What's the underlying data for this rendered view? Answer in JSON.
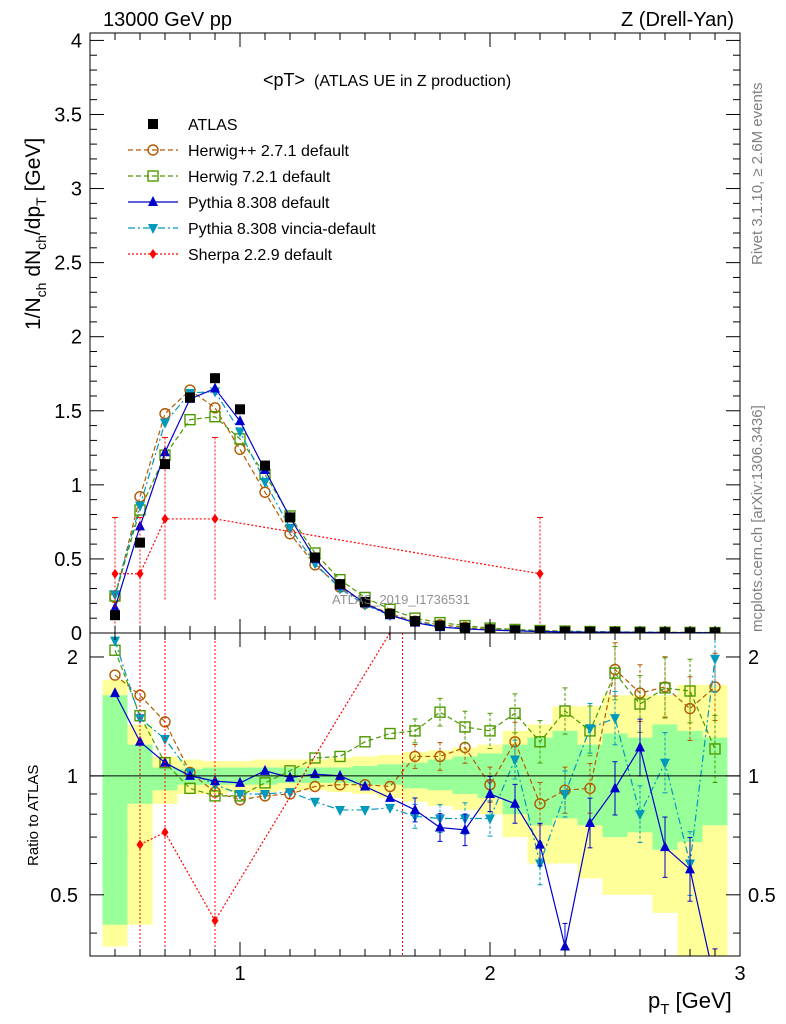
{
  "header": {
    "left": "13000 GeV pp",
    "right": "Z (Drell-Yan)",
    "plot_title": "<pT>",
    "plot_subtitle": "(ATLAS UE in Z production)",
    "side_top": "Rivet 3.1.10, ≥ 2.6M events",
    "side_bottom": "mcplots.cern.ch [arXiv:1306.3436]",
    "watermark": "ATLAS_2019_I1736531"
  },
  "colors": {
    "atlas": "#000000",
    "herwigpp": "#b35900",
    "herwig7": "#4d9900",
    "pythia": "#0000cc",
    "vincia": "#0099bb",
    "sherpa": "#ff0000",
    "band_outer": "#ffff99",
    "band_inner": "#99ff99"
  },
  "chart_data": [
    {
      "type": "line",
      "panel": "main",
      "xlabel": "p_T [GeV]",
      "ylabel": "1/N_ch dN_ch/dp_T [GeV]",
      "xlim": [
        0.4,
        3.0
      ],
      "ylim": [
        0,
        4.05
      ],
      "y_ticks": [
        "0",
        "0.5",
        "1",
        "1.5",
        "2",
        "2.5",
        "3",
        "3.5",
        "4"
      ],
      "legend": [
        {
          "key": "atlas",
          "label": "ATLAS"
        },
        {
          "key": "herwigpp",
          "label": "Herwig++ 2.7.1 default"
        },
        {
          "key": "herwig7",
          "label": "Herwig 7.2.1 default"
        },
        {
          "key": "pythia",
          "label": "Pythia 8.308 default"
        },
        {
          "key": "vincia",
          "label": "Pythia 8.308 vincia-default"
        },
        {
          "key": "sherpa",
          "label": "Sherpa 2.2.9 default"
        }
      ],
      "series": [
        {
          "key": "atlas",
          "name": "ATLAS",
          "x": [
            0.5,
            0.6,
            0.7,
            0.8,
            0.9,
            1.0,
            1.1,
            1.2,
            1.3,
            1.4,
            1.5,
            1.6,
            1.7,
            1.8,
            1.9,
            2.0,
            2.1,
            2.2,
            2.3,
            2.4,
            2.5,
            2.6,
            2.7,
            2.8,
            2.9
          ],
          "y": [
            0.12,
            0.61,
            1.14,
            1.59,
            1.72,
            1.51,
            1.13,
            0.78,
            0.51,
            0.33,
            0.21,
            0.13,
            0.08,
            0.05,
            0.035,
            0.025,
            0.018,
            0.013,
            0.01,
            0.008,
            0.006,
            0.005,
            0.004,
            0.003,
            0.003
          ]
        },
        {
          "key": "herwigpp",
          "name": "Herwig++ 2.7.1 default",
          "x": [
            0.5,
            0.6,
            0.7,
            0.8,
            0.9,
            1.0,
            1.1,
            1.2,
            1.3,
            1.4,
            1.5,
            1.6,
            1.7,
            1.8,
            1.9,
            2.0,
            2.1,
            2.2,
            2.3,
            2.4,
            2.5,
            2.6,
            2.7,
            2.8,
            2.9
          ],
          "y": [
            0.24,
            0.92,
            1.48,
            1.64,
            1.52,
            1.24,
            0.95,
            0.67,
            0.46,
            0.31,
            0.2,
            0.13,
            0.08,
            0.055,
            0.038,
            0.025,
            0.016,
            0.011,
            0.009,
            0.007,
            0.006,
            0.005,
            0.004,
            0.003,
            0.003
          ]
        },
        {
          "key": "herwig7",
          "name": "Herwig 7.2.1 default",
          "x": [
            0.5,
            0.6,
            0.7,
            0.8,
            0.9,
            1.0,
            1.1,
            1.2,
            1.3,
            1.4,
            1.5,
            1.6,
            1.7,
            1.8,
            1.9,
            2.0,
            2.1,
            2.2,
            2.3,
            2.4,
            2.5,
            2.6,
            2.7,
            2.8,
            2.9
          ],
          "y": [
            0.25,
            0.83,
            1.2,
            1.44,
            1.46,
            1.31,
            1.07,
            0.79,
            0.54,
            0.36,
            0.24,
            0.16,
            0.1,
            0.07,
            0.05,
            0.033,
            0.024,
            0.017,
            0.013,
            0.01,
            0.008,
            0.006,
            0.005,
            0.004,
            0.003
          ]
        },
        {
          "key": "pythia",
          "name": "Pythia 8.308 default",
          "x": [
            0.5,
            0.6,
            0.7,
            0.8,
            0.9,
            1.0,
            1.1,
            1.2,
            1.3,
            1.4,
            1.5,
            1.6,
            1.7,
            1.8,
            1.9,
            2.0,
            2.1,
            2.2,
            2.3,
            2.4,
            2.5,
            2.6,
            2.7,
            2.8,
            2.9
          ],
          "y": [
            0.17,
            0.72,
            1.22,
            1.58,
            1.65,
            1.43,
            1.1,
            0.78,
            0.5,
            0.32,
            0.2,
            0.12,
            0.07,
            0.04,
            0.028,
            0.02,
            0.015,
            0.01,
            0.007,
            0.006,
            0.005,
            0.004,
            0.003,
            0.002,
            0.002
          ]
        },
        {
          "key": "vincia",
          "name": "Pythia 8.308 vincia-default",
          "x": [
            0.5,
            0.6,
            0.7,
            0.8,
            0.9,
            1.0,
            1.1,
            1.2,
            1.3,
            1.4,
            1.5,
            1.6,
            1.7,
            1.8,
            1.9,
            2.0,
            2.1,
            2.2,
            2.3,
            2.4,
            2.5,
            2.6,
            2.7,
            2.8,
            2.9
          ],
          "y": [
            0.26,
            0.86,
            1.42,
            1.62,
            1.63,
            1.36,
            1.02,
            0.71,
            0.47,
            0.3,
            0.19,
            0.12,
            0.075,
            0.045,
            0.03,
            0.02,
            0.015,
            0.01,
            0.008,
            0.006,
            0.005,
            0.004,
            0.003,
            0.003,
            0.003
          ]
        },
        {
          "key": "sherpa",
          "name": "Sherpa 2.2.9 default",
          "x": [
            0.5,
            0.6,
            0.7,
            0.9,
            2.2
          ],
          "y": [
            0.4,
            0.4,
            0.77,
            0.77,
            0.4
          ],
          "err": [
            0.38,
            0.38,
            0.55,
            0.55,
            0.38
          ]
        }
      ]
    },
    {
      "type": "line",
      "panel": "ratio",
      "ylabel": "Ratio to ATLAS",
      "xlabel": "p_T [GeV]",
      "xlim": [
        0.4,
        3.0
      ],
      "ylim": [
        0.35,
        2.3
      ],
      "y_ticks": [
        "0.5",
        "1",
        "2"
      ],
      "x_ticks": [
        "1",
        "2",
        "3"
      ],
      "band": {
        "x": [
          0.5,
          0.6,
          0.7,
          0.8,
          0.9,
          1.0,
          1.1,
          1.2,
          1.3,
          1.4,
          1.5,
          1.6,
          1.7,
          1.8,
          1.9,
          2.0,
          2.1,
          2.2,
          2.3,
          2.4,
          2.5,
          2.6,
          2.7,
          2.8,
          2.9
        ],
        "outer_lo": [
          0.37,
          0.42,
          0.85,
          0.9,
          0.9,
          0.91,
          0.91,
          0.92,
          0.92,
          0.91,
          0.9,
          0.88,
          0.86,
          0.84,
          0.82,
          0.8,
          0.7,
          0.6,
          0.6,
          0.55,
          0.5,
          0.5,
          0.45,
          0.35,
          0.35
        ],
        "outer_hi": [
          1.75,
          1.35,
          1.12,
          1.1,
          1.09,
          1.09,
          1.1,
          1.1,
          1.1,
          1.11,
          1.12,
          1.13,
          1.15,
          1.16,
          1.18,
          1.2,
          1.3,
          1.35,
          1.5,
          1.5,
          1.6,
          1.6,
          1.6,
          1.7,
          1.7
        ],
        "inner_lo": [
          0.42,
          0.85,
          0.92,
          0.95,
          0.95,
          0.95,
          0.95,
          0.96,
          0.96,
          0.96,
          0.95,
          0.95,
          0.93,
          0.92,
          0.9,
          0.88,
          0.8,
          0.75,
          0.78,
          0.75,
          0.7,
          0.72,
          0.65,
          0.68,
          0.75
        ],
        "inner_hi": [
          1.6,
          1.2,
          1.05,
          1.04,
          1.05,
          1.05,
          1.05,
          1.05,
          1.05,
          1.05,
          1.06,
          1.07,
          1.08,
          1.1,
          1.12,
          1.14,
          1.2,
          1.25,
          1.3,
          1.2,
          1.28,
          1.25,
          1.35,
          1.3,
          1.25
        ]
      },
      "series": [
        {
          "key": "herwigpp",
          "name": "Herwig++ 2.7.1 default",
          "x": [
            0.5,
            0.6,
            0.7,
            0.8,
            0.9,
            1.0,
            1.1,
            1.2,
            1.3,
            1.4,
            1.5,
            1.6,
            1.7,
            1.8,
            1.9,
            2.0,
            2.1,
            2.2,
            2.3,
            2.4,
            2.5,
            2.6,
            2.7,
            2.8,
            2.9
          ],
          "y": [
            1.8,
            1.6,
            1.37,
            1.02,
            0.91,
            0.87,
            0.89,
            0.9,
            0.94,
            0.95,
            0.95,
            0.94,
            1.12,
            1.12,
            1.18,
            0.95,
            1.22,
            0.85,
            0.92,
            0.93,
            1.86,
            1.62,
            1.68,
            1.48,
            1.68
          ]
        },
        {
          "key": "herwig7",
          "name": "Herwig 7.2.1 default",
          "x": [
            0.5,
            0.6,
            0.7,
            0.8,
            0.9,
            1.0,
            1.1,
            1.2,
            1.3,
            1.4,
            1.5,
            1.6,
            1.7,
            1.8,
            1.9,
            2.0,
            2.1,
            2.2,
            2.3,
            2.4,
            2.5,
            2.6,
            2.7,
            2.8,
            2.9
          ],
          "y": [
            2.08,
            1.42,
            1.08,
            0.93,
            0.89,
            0.89,
            0.96,
            1.03,
            1.11,
            1.12,
            1.22,
            1.28,
            1.3,
            1.45,
            1.33,
            1.3,
            1.44,
            1.22,
            1.46,
            1.3,
            1.82,
            1.52,
            1.67,
            1.64,
            1.17
          ]
        },
        {
          "key": "pythia",
          "name": "Pythia 8.308 default",
          "x": [
            0.5,
            0.6,
            0.7,
            0.8,
            0.9,
            1.0,
            1.1,
            1.2,
            1.3,
            1.4,
            1.5,
            1.6,
            1.7,
            1.8,
            1.9,
            2.0,
            2.1,
            2.2,
            2.3,
            2.4,
            2.5,
            2.6,
            2.7,
            2.8,
            2.9
          ],
          "y": [
            1.62,
            1.22,
            1.08,
            1.0,
            0.97,
            0.96,
            1.03,
            0.99,
            1.01,
            1.0,
            0.94,
            0.88,
            0.82,
            0.74,
            0.73,
            0.9,
            0.85,
            0.67,
            0.37,
            0.76,
            0.93,
            1.18,
            0.66,
            0.58,
            0.3
          ]
        },
        {
          "key": "vincia",
          "name": "Pythia 8.308 vincia-default",
          "x": [
            0.5,
            0.6,
            0.7,
            0.8,
            0.9,
            1.0,
            1.1,
            1.2,
            1.3,
            1.4,
            1.5,
            1.6,
            1.7,
            1.8,
            1.9,
            2.0,
            2.1,
            2.2,
            2.3,
            2.4,
            2.5,
            2.6,
            2.7,
            2.8,
            2.9
          ],
          "y": [
            2.2,
            1.4,
            1.24,
            1.02,
            0.95,
            0.9,
            0.9,
            0.91,
            0.86,
            0.82,
            0.82,
            0.83,
            0.79,
            0.78,
            0.78,
            0.78,
            1.1,
            0.6,
            0.9,
            1.32,
            1.4,
            0.8,
            1.08,
            0.6,
            1.98
          ]
        },
        {
          "key": "sherpa",
          "name": "Sherpa 2.2.9 default",
          "x": [
            0.6,
            0.7,
            0.9,
            1.65
          ],
          "y": [
            0.67,
            0.72,
            0.43,
            2.6
          ]
        }
      ]
    }
  ]
}
